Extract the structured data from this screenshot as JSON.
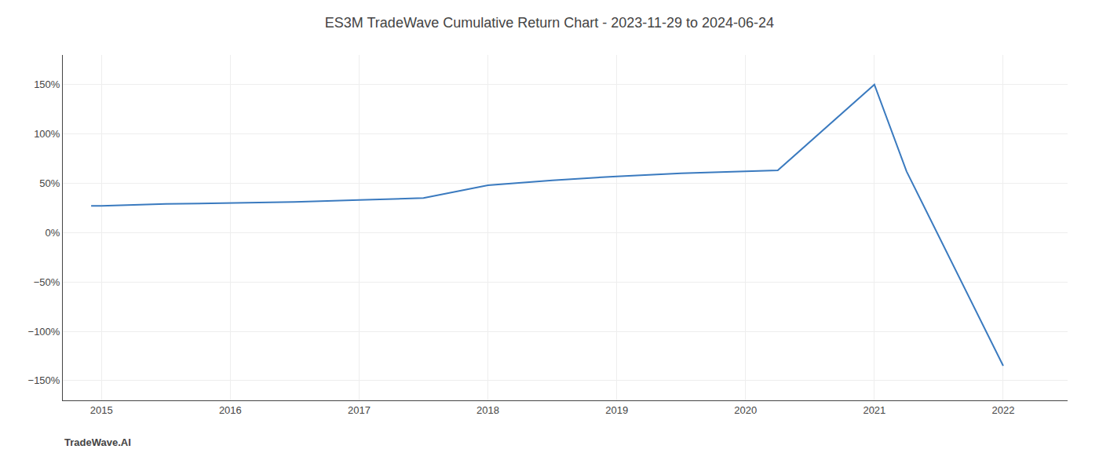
{
  "chart_data": {
    "type": "line",
    "title": "ES3M TradeWave Cumulative Return Chart - 2023-11-29 to 2024-06-24",
    "annotations": [
      "TradeWave.AI"
    ],
    "x": [
      2014.92,
      2015.0,
      2015.5,
      2016.0,
      2016.5,
      2017.0,
      2017.5,
      2018.0,
      2018.5,
      2019.0,
      2019.5,
      2020.0,
      2020.25,
      2021.0,
      2021.25,
      2022.0
    ],
    "values": [
      27,
      27,
      29,
      30,
      31,
      33,
      35,
      48,
      53,
      57,
      60,
      62,
      63,
      150,
      62,
      -135
    ],
    "color": "#3a7abf",
    "xlim": [
      2014.7,
      2022.5
    ],
    "xticks": [
      2015,
      2016,
      2017,
      2018,
      2019,
      2020,
      2021,
      2022
    ],
    "ylim": [
      -170,
      180
    ],
    "yticks": [
      {
        "value": -150,
        "label": "−150%"
      },
      {
        "value": -100,
        "label": "−100%"
      },
      {
        "value": -50,
        "label": "−50%"
      },
      {
        "value": 0,
        "label": "0%"
      },
      {
        "value": 50,
        "label": "50%"
      },
      {
        "value": 100,
        "label": "100%"
      },
      {
        "value": 150,
        "label": "150%"
      }
    ],
    "grid": true
  }
}
